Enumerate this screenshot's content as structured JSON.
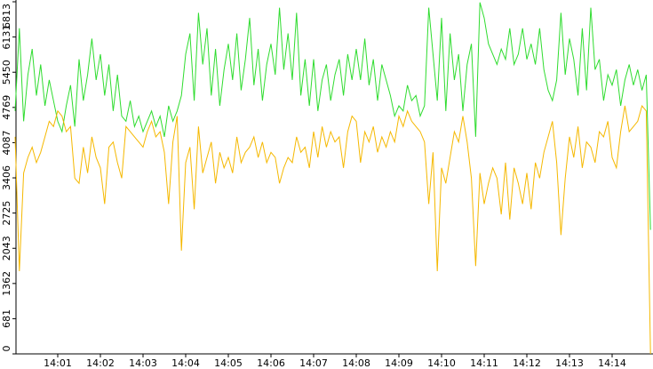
{
  "chart_data": {
    "type": "line",
    "xlim": [
      0,
      150
    ],
    "xticks": [
      {
        "value": 10,
        "label": "14:01"
      },
      {
        "value": 20,
        "label": "14:02"
      },
      {
        "value": 30,
        "label": "14:03"
      },
      {
        "value": 40,
        "label": "14:04"
      },
      {
        "value": 50,
        "label": "14:05"
      },
      {
        "value": 60,
        "label": "14:06"
      },
      {
        "value": 70,
        "label": "14:07"
      },
      {
        "value": 80,
        "label": "14:08"
      },
      {
        "value": 90,
        "label": "14:09"
      },
      {
        "value": 100,
        "label": "14:10"
      },
      {
        "value": 110,
        "label": "14:11"
      },
      {
        "value": 120,
        "label": "14:12"
      },
      {
        "value": 130,
        "label": "14:13"
      },
      {
        "value": 140,
        "label": "14:14"
      }
    ],
    "ylim": [
      0,
      6813
    ],
    "yticks": [
      0,
      681,
      1362,
      2043,
      2725,
      3406,
      4087,
      4769,
      5450,
      6131,
      6813
    ],
    "series": [
      {
        "color": "#2fdc2f",
        "values": [
          4700,
          6300,
          4500,
          5400,
          5900,
          5000,
          5600,
          4800,
          5300,
          4900,
          4500,
          4300,
          4800,
          5200,
          4400,
          5700,
          4900,
          5400,
          6100,
          5300,
          5800,
          5000,
          5600,
          4700,
          5400,
          4600,
          4500,
          4900,
          4400,
          4600,
          4300,
          4500,
          4700,
          4400,
          4600,
          4200,
          4800,
          4500,
          4700,
          5000,
          5800,
          6200,
          4900,
          6600,
          5600,
          6300,
          5000,
          5900,
          4800,
          5500,
          6000,
          5300,
          6200,
          5100,
          5700,
          6500,
          5200,
          5900,
          4900,
          5600,
          6000,
          5400,
          6700,
          5500,
          6200,
          5300,
          6600,
          5000,
          5700,
          4800,
          5700,
          4700,
          5300,
          5600,
          4900,
          5400,
          5700,
          5000,
          5800,
          5300,
          5900,
          5300,
          6100,
          5200,
          5700,
          4900,
          5600,
          5300,
          5000,
          4600,
          4800,
          4700,
          5200,
          4900,
          5000,
          4600,
          4800,
          6700,
          5800,
          4900,
          6500,
          4700,
          6200,
          5300,
          5800,
          4700,
          5600,
          6000,
          4200,
          6800,
          6500,
          6000,
          5800,
          5600,
          5900,
          5700,
          6300,
          5600,
          5800,
          6300,
          5700,
          6000,
          5600,
          6300,
          5500,
          5100,
          4900,
          5300,
          6600,
          5400,
          6100,
          5700,
          5000,
          6300,
          5100,
          6700,
          5500,
          5700,
          4900,
          5400,
          5200,
          5500,
          4800,
          5300,
          5600,
          5200,
          5500,
          5100,
          5400,
          2400
        ]
      },
      {
        "color": "#f5b800",
        "values": [
          4200,
          1600,
          3500,
          3800,
          4000,
          3700,
          3900,
          4200,
          4500,
          4400,
          4700,
          4600,
          4300,
          4400,
          3400,
          3300,
          4000,
          3500,
          4200,
          3800,
          3600,
          2900,
          4000,
          4100,
          3700,
          3400,
          4400,
          4300,
          4200,
          4100,
          4000,
          4300,
          4500,
          4200,
          4300,
          3900,
          2900,
          4100,
          4600,
          2000,
          3700,
          4000,
          2800,
          4400,
          3500,
          3800,
          4100,
          3300,
          3900,
          3600,
          3800,
          3500,
          4200,
          3700,
          3900,
          4000,
          4200,
          3800,
          4100,
          3700,
          3900,
          3800,
          3300,
          3600,
          3800,
          3700,
          4200,
          3900,
          4000,
          3600,
          4300,
          3800,
          4400,
          4000,
          4300,
          4100,
          4200,
          3600,
          4300,
          4600,
          4500,
          3700,
          4300,
          4100,
          4400,
          3900,
          4200,
          4000,
          4300,
          4100,
          4600,
          4400,
          4700,
          4500,
          4400,
          4300,
          4100,
          2900,
          3900,
          1600,
          3600,
          3300,
          3800,
          4300,
          4100,
          4600,
          4100,
          3400,
          1700,
          3500,
          2900,
          3300,
          3600,
          3400,
          2700,
          3700,
          2600,
          3600,
          3300,
          2900,
          3500,
          2800,
          3700,
          3400,
          3900,
          4200,
          4500,
          3700,
          2300,
          3400,
          4200,
          3800,
          4400,
          3600,
          4100,
          4000,
          3700,
          4300,
          4200,
          4500,
          3800,
          3600,
          4300,
          4800,
          4300,
          4400,
          4500,
          4800,
          4700,
          0
        ]
      }
    ]
  }
}
